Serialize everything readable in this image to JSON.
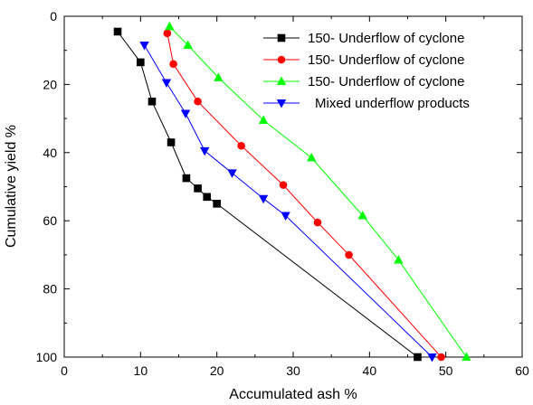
{
  "chart_data": {
    "type": "line",
    "xlabel": "Accumulated ash %",
    "ylabel": "Cumulative yield %",
    "xlim": [
      0,
      60
    ],
    "ylim": [
      100,
      0
    ],
    "y_inverted": true,
    "x_ticks": [
      "0",
      "10",
      "20",
      "30",
      "40",
      "50",
      "60"
    ],
    "y_ticks": [
      "0",
      "20",
      "40",
      "60",
      "80",
      "100"
    ],
    "grid": false,
    "legend_position": "top-right",
    "series": [
      {
        "name": "150- Underflow of cyclone",
        "color": "#000000",
        "marker": "square",
        "x": [
          7.0,
          10.0,
          11.5,
          14.0,
          16.0,
          17.5,
          18.7,
          20.0,
          46.3
        ],
        "y": [
          4.5,
          13.5,
          25.0,
          37.0,
          47.5,
          50.5,
          53.0,
          55.0,
          100
        ]
      },
      {
        "name": "150- Underflow of cyclone",
        "color": "#ff0000",
        "marker": "circle",
        "x": [
          13.5,
          14.3,
          17.5,
          23.2,
          28.7,
          33.2,
          37.3,
          49.4
        ],
        "y": [
          5.0,
          14.0,
          25.0,
          38.0,
          49.5,
          60.5,
          70.0,
          100
        ]
      },
      {
        "name": "150- Underflow of cyclone",
        "color": "#00ff00",
        "marker": "triangle-up",
        "x": [
          13.8,
          16.2,
          20.2,
          26.1,
          32.4,
          39.1,
          43.8,
          52.7
        ],
        "y": [
          3.0,
          8.5,
          18.0,
          30.5,
          41.5,
          58.5,
          71.5,
          100
        ]
      },
      {
        "name": "Mixed underflow products",
        "color": "#0000ff",
        "marker": "triangle-down",
        "x": [
          10.5,
          13.4,
          15.9,
          18.4,
          22.0,
          26.1,
          29.0,
          48.2
        ],
        "y": [
          8.5,
          19.5,
          28.5,
          39.5,
          46.0,
          53.5,
          58.5,
          100
        ]
      }
    ]
  }
}
